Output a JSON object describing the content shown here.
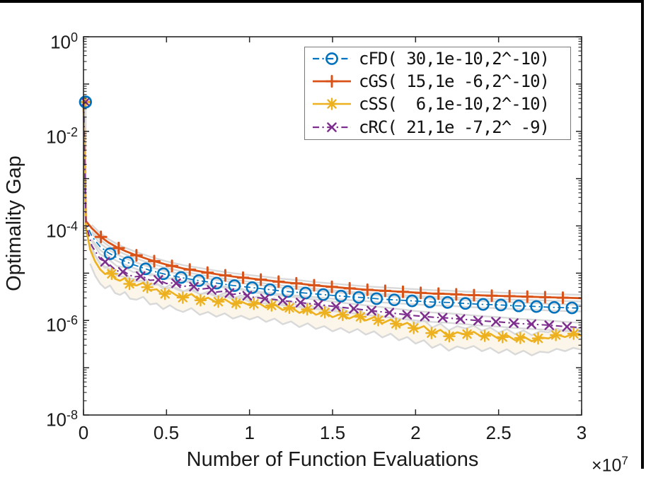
{
  "axes": {
    "ylabel": "Optimality Gap",
    "xlabel": "Number of Function Evaluations",
    "x_multiplier": {
      "times": "×10",
      "exp": "7"
    },
    "x_ticks": [
      "0",
      "0.5",
      "1",
      "1.5",
      "2",
      "2.5",
      "3"
    ],
    "y_ticks": [
      {
        "base": "10",
        "exp": "0",
        "value": 0
      },
      {
        "base": "10",
        "exp": "-2",
        "value": -2
      },
      {
        "base": "10",
        "exp": "-4",
        "value": -4
      },
      {
        "base": "10",
        "exp": "-6",
        "value": -6
      },
      {
        "base": "10",
        "exp": "-8",
        "value": -8
      }
    ],
    "frame_color": "#262626",
    "band_color": "#d9d9d9",
    "band_fill": "#faf3e2"
  },
  "legend": {
    "items": [
      {
        "label": "cFD( 30,1e-10,2^-10)",
        "series": "cFD"
      },
      {
        "label": "cGS( 15,1e -6,2^-10)",
        "series": "cGS"
      },
      {
        "label": "cSS(  6,1e-10,2^-10)",
        "series": "cSS"
      },
      {
        "label": "cRC( 21,1e -7,2^ -9)",
        "series": "cRC"
      }
    ]
  },
  "chart_data": {
    "type": "line",
    "title": "",
    "xlabel": "Number of Function Evaluations (×10^7)",
    "ylabel": "Optimality Gap",
    "xlim": [
      0,
      3
    ],
    "ylim_log10": [
      -8,
      0
    ],
    "y_is_log10": true,
    "note": "points are [x in 1e7 evaluations, log10(optimality gap)]; all series start at [0, -1.38] (~4e-2); gray shaded confidence bands drawn at band_up/band_dn log-offsets",
    "series": [
      {
        "name": "cFD",
        "color": "#0072BD",
        "marker": "circle",
        "style": "dashdot",
        "width": 1.7,
        "marker_offset": 0.16,
        "marker_spacing": 0.107,
        "band_up": 0.07,
        "band_dn": 0.07,
        "fill": false,
        "points": [
          [
            0,
            -1.38
          ],
          [
            0.015,
            -3.93
          ],
          [
            0.05,
            -4.22
          ],
          [
            0.1,
            -4.44
          ],
          [
            0.15,
            -4.57
          ],
          [
            0.2,
            -4.67
          ],
          [
            0.25,
            -4.75
          ],
          [
            0.3,
            -4.82
          ],
          [
            0.4,
            -4.94
          ],
          [
            0.5,
            -5.03
          ],
          [
            0.6,
            -5.1
          ],
          [
            0.7,
            -5.16
          ],
          [
            0.8,
            -5.21
          ],
          [
            0.9,
            -5.26
          ],
          [
            1.0,
            -5.3
          ],
          [
            1.1,
            -5.34
          ],
          [
            1.2,
            -5.38
          ],
          [
            1.3,
            -5.41
          ],
          [
            1.4,
            -5.44
          ],
          [
            1.5,
            -5.47
          ],
          [
            1.6,
            -5.5
          ],
          [
            1.7,
            -5.52
          ],
          [
            1.8,
            -5.55
          ],
          [
            1.9,
            -5.57
          ],
          [
            2.0,
            -5.59
          ],
          [
            2.1,
            -5.61
          ],
          [
            2.2,
            -5.62
          ],
          [
            2.3,
            -5.64
          ],
          [
            2.4,
            -5.66
          ],
          [
            2.5,
            -5.67
          ],
          [
            2.6,
            -5.69
          ],
          [
            2.7,
            -5.7
          ],
          [
            2.8,
            -5.72
          ],
          [
            2.9,
            -5.73
          ],
          [
            3.0,
            -5.74
          ]
        ]
      },
      {
        "name": "cGS",
        "color": "#D95319",
        "marker": "plus",
        "style": "solid",
        "width": 2.8,
        "marker_offset": 0.105,
        "marker_spacing": 0.107,
        "band_up": 0.07,
        "band_dn": 0.07,
        "fill": false,
        "points": [
          [
            0,
            -1.38
          ],
          [
            0.015,
            -3.9
          ],
          [
            0.05,
            -4.05
          ],
          [
            0.1,
            -4.22
          ],
          [
            0.15,
            -4.35
          ],
          [
            0.2,
            -4.45
          ],
          [
            0.25,
            -4.53
          ],
          [
            0.3,
            -4.6
          ],
          [
            0.4,
            -4.72
          ],
          [
            0.5,
            -4.82
          ],
          [
            0.6,
            -4.9
          ],
          [
            0.7,
            -4.96
          ],
          [
            0.8,
            -5.02
          ],
          [
            0.9,
            -5.07
          ],
          [
            1.0,
            -5.11
          ],
          [
            1.1,
            -5.15
          ],
          [
            1.2,
            -5.19
          ],
          [
            1.3,
            -5.22
          ],
          [
            1.4,
            -5.26
          ],
          [
            1.5,
            -5.29
          ],
          [
            1.6,
            -5.32
          ],
          [
            1.7,
            -5.35
          ],
          [
            1.8,
            -5.37
          ],
          [
            1.9,
            -5.39
          ],
          [
            2.0,
            -5.41
          ],
          [
            2.1,
            -5.43
          ],
          [
            2.2,
            -5.44
          ],
          [
            2.3,
            -5.46
          ],
          [
            2.4,
            -5.47
          ],
          [
            2.5,
            -5.48
          ],
          [
            2.6,
            -5.49
          ],
          [
            2.7,
            -5.5
          ],
          [
            2.8,
            -5.51
          ],
          [
            2.9,
            -5.52
          ],
          [
            3.0,
            -5.53
          ]
        ]
      },
      {
        "name": "cSS",
        "color": "#EDB120",
        "marker": "asterisk",
        "style": "solid",
        "width": 2.6,
        "marker_offset": 0.17,
        "marker_spacing": 0.107,
        "band_up": 0.13,
        "band_dn": 0.3,
        "fill": true,
        "points": [
          [
            0,
            -1.38
          ],
          [
            0.015,
            -4.05
          ],
          [
            0.04,
            -4.5
          ],
          [
            0.07,
            -4.75
          ],
          [
            0.1,
            -4.92
          ],
          [
            0.13,
            -5.02
          ],
          [
            0.16,
            -4.96
          ],
          [
            0.19,
            -5.12
          ],
          [
            0.22,
            -5.16
          ],
          [
            0.25,
            -5.1
          ],
          [
            0.28,
            -5.24
          ],
          [
            0.32,
            -5.26
          ],
          [
            0.36,
            -5.2
          ],
          [
            0.4,
            -5.36
          ],
          [
            0.44,
            -5.34
          ],
          [
            0.48,
            -5.46
          ],
          [
            0.52,
            -5.38
          ],
          [
            0.56,
            -5.47
          ],
          [
            0.6,
            -5.52
          ],
          [
            0.65,
            -5.44
          ],
          [
            0.7,
            -5.58
          ],
          [
            0.75,
            -5.52
          ],
          [
            0.8,
            -5.62
          ],
          [
            0.85,
            -5.55
          ],
          [
            0.9,
            -5.66
          ],
          [
            0.95,
            -5.6
          ],
          [
            1.0,
            -5.68
          ],
          [
            1.05,
            -5.62
          ],
          [
            1.1,
            -5.73
          ],
          [
            1.15,
            -5.66
          ],
          [
            1.2,
            -5.78
          ],
          [
            1.25,
            -5.72
          ],
          [
            1.3,
            -5.84
          ],
          [
            1.35,
            -5.76
          ],
          [
            1.4,
            -5.88
          ],
          [
            1.45,
            -5.82
          ],
          [
            1.5,
            -5.93
          ],
          [
            1.55,
            -5.86
          ],
          [
            1.6,
            -5.96
          ],
          [
            1.65,
            -5.88
          ],
          [
            1.7,
            -6.0
          ],
          [
            1.75,
            -5.93
          ],
          [
            1.8,
            -6.06
          ],
          [
            1.85,
            -5.98
          ],
          [
            1.9,
            -6.12
          ],
          [
            1.95,
            -6.05
          ],
          [
            2.0,
            -6.19
          ],
          [
            2.05,
            -6.12
          ],
          [
            2.1,
            -6.28
          ],
          [
            2.15,
            -6.2
          ],
          [
            2.2,
            -6.34
          ],
          [
            2.25,
            -6.25
          ],
          [
            2.3,
            -6.3
          ],
          [
            2.35,
            -6.24
          ],
          [
            2.4,
            -6.35
          ],
          [
            2.45,
            -6.28
          ],
          [
            2.5,
            -6.39
          ],
          [
            2.55,
            -6.31
          ],
          [
            2.6,
            -6.42
          ],
          [
            2.65,
            -6.34
          ],
          [
            2.7,
            -6.44
          ],
          [
            2.75,
            -6.36
          ],
          [
            2.8,
            -6.38
          ],
          [
            2.85,
            -6.3
          ],
          [
            2.9,
            -6.35
          ],
          [
            2.95,
            -6.28
          ],
          [
            3.0,
            -6.32
          ]
        ]
      },
      {
        "name": "cRC",
        "color": "#7E2F8E",
        "marker": "x",
        "style": "dashdot",
        "width": 2.1,
        "marker_offset": 0.13,
        "marker_spacing": 0.107,
        "band_up": 0.1,
        "band_dn": 0.1,
        "fill": false,
        "points": [
          [
            0,
            -1.38
          ],
          [
            0.015,
            -3.95
          ],
          [
            0.05,
            -4.42
          ],
          [
            0.1,
            -4.7
          ],
          [
            0.15,
            -4.8
          ],
          [
            0.2,
            -4.95
          ],
          [
            0.25,
            -4.98
          ],
          [
            0.3,
            -5.08
          ],
          [
            0.35,
            -5.06
          ],
          [
            0.4,
            -5.15
          ],
          [
            0.45,
            -5.14
          ],
          [
            0.5,
            -5.22
          ],
          [
            0.55,
            -5.2
          ],
          [
            0.6,
            -5.28
          ],
          [
            0.65,
            -5.26
          ],
          [
            0.7,
            -5.34
          ],
          [
            0.75,
            -5.32
          ],
          [
            0.8,
            -5.4
          ],
          [
            0.85,
            -5.38
          ],
          [
            0.9,
            -5.45
          ],
          [
            0.95,
            -5.42
          ],
          [
            1.0,
            -5.5
          ],
          [
            1.1,
            -5.54
          ],
          [
            1.2,
            -5.58
          ],
          [
            1.3,
            -5.62
          ],
          [
            1.4,
            -5.66
          ],
          [
            1.5,
            -5.7
          ],
          [
            1.6,
            -5.74
          ],
          [
            1.7,
            -5.78
          ],
          [
            1.8,
            -5.82
          ],
          [
            1.9,
            -5.86
          ],
          [
            2.0,
            -5.9
          ],
          [
            2.1,
            -5.93
          ],
          [
            2.2,
            -5.95
          ],
          [
            2.3,
            -5.98
          ],
          [
            2.4,
            -6.01
          ],
          [
            2.5,
            -6.03
          ],
          [
            2.6,
            -6.06
          ],
          [
            2.7,
            -6.08
          ],
          [
            2.8,
            -6.1
          ],
          [
            2.9,
            -6.13
          ],
          [
            3.0,
            -6.15
          ]
        ]
      }
    ],
    "start_point": {
      "x": 0,
      "log10_gap": -1.38
    }
  }
}
